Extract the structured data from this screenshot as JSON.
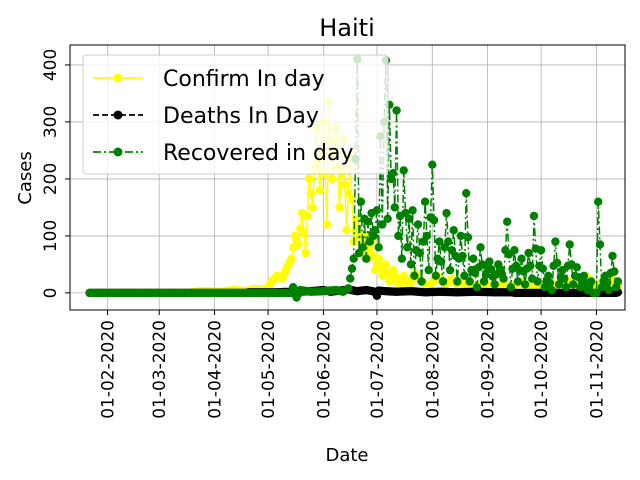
{
  "chart_data": {
    "type": "line",
    "title": "Haiti",
    "xlabel": "Date",
    "ylabel": "Cases",
    "x_range": [
      "2020-01-11",
      "2020-11-17"
    ],
    "ylim": [
      -30,
      435
    ],
    "grid": true,
    "legend_position": "top-left",
    "x_tick_labels": [
      "01-02-2020",
      "01-03-2020",
      "01-04-2020",
      "01-05-2020",
      "01-06-2020",
      "01-07-2020",
      "01-08-2020",
      "01-09-2020",
      "01-10-2020",
      "01-11-2020"
    ],
    "x_tick_dates": [
      "2020-02-01",
      "2020-03-01",
      "2020-04-01",
      "2020-05-01",
      "2020-06-01",
      "2020-07-01",
      "2020-08-01",
      "2020-09-01",
      "2020-10-01",
      "2020-11-01"
    ],
    "y_ticks": [
      0,
      100,
      200,
      300,
      400
    ],
    "series": [
      {
        "name": "Confirm In day",
        "color": "#ffff00",
        "line_style": "solid",
        "points": [
          [
            "2020-01-22",
            0
          ],
          [
            "2020-03-15",
            0
          ],
          [
            "2020-03-20",
            2
          ],
          [
            "2020-03-28",
            3
          ],
          [
            "2020-04-05",
            2
          ],
          [
            "2020-04-12",
            5
          ],
          [
            "2020-04-18",
            3
          ],
          [
            "2020-04-24",
            7
          ],
          [
            "2020-04-30",
            6
          ],
          [
            "2020-05-03",
            20
          ],
          [
            "2020-05-06",
            30
          ],
          [
            "2020-05-09",
            25
          ],
          [
            "2020-05-11",
            40
          ],
          [
            "2020-05-14",
            60
          ],
          [
            "2020-05-16",
            100
          ],
          [
            "2020-05-18",
            85
          ],
          [
            "2020-05-20",
            140
          ],
          [
            "2020-05-22",
            70
          ],
          [
            "2020-05-24",
            200
          ],
          [
            "2020-05-26",
            150
          ],
          [
            "2020-05-28",
            290
          ],
          [
            "2020-05-30",
            180
          ],
          [
            "2020-06-01",
            300
          ],
          [
            "2020-06-03",
            120
          ],
          [
            "2020-06-04",
            335
          ],
          [
            "2020-06-06",
            200
          ],
          [
            "2020-06-08",
            290
          ],
          [
            "2020-06-10",
            150
          ],
          [
            "2020-06-12",
            270
          ],
          [
            "2020-06-14",
            110
          ],
          [
            "2020-06-16",
            240
          ],
          [
            "2020-06-18",
            90
          ],
          [
            "2020-06-20",
            130
          ],
          [
            "2020-06-22",
            70
          ],
          [
            "2020-06-24",
            100
          ],
          [
            "2020-06-26",
            60
          ],
          [
            "2020-06-28",
            90
          ],
          [
            "2020-06-30",
            40
          ],
          [
            "2020-07-02",
            60
          ],
          [
            "2020-07-04",
            30
          ],
          [
            "2020-07-06",
            50
          ],
          [
            "2020-07-08",
            20
          ],
          [
            "2020-07-10",
            40
          ],
          [
            "2020-07-13",
            15
          ],
          [
            "2020-07-16",
            30
          ],
          [
            "2020-07-19",
            10
          ],
          [
            "2020-07-22",
            35
          ],
          [
            "2020-07-26",
            20
          ],
          [
            "2020-07-30",
            10
          ],
          [
            "2020-08-04",
            30
          ],
          [
            "2020-08-08",
            15
          ],
          [
            "2020-08-12",
            25
          ],
          [
            "2020-08-16",
            10
          ],
          [
            "2020-08-20",
            20
          ],
          [
            "2020-08-25",
            12
          ],
          [
            "2020-08-30",
            18
          ],
          [
            "2020-09-04",
            8
          ],
          [
            "2020-09-09",
            15
          ],
          [
            "2020-09-14",
            10
          ],
          [
            "2020-09-20",
            20
          ],
          [
            "2020-09-26",
            8
          ],
          [
            "2020-10-02",
            15
          ],
          [
            "2020-10-08",
            10
          ],
          [
            "2020-10-14",
            25
          ],
          [
            "2020-10-20",
            12
          ],
          [
            "2020-10-26",
            30
          ],
          [
            "2020-11-01",
            10
          ],
          [
            "2020-11-04",
            20
          ],
          [
            "2020-11-07",
            15
          ],
          [
            "2020-11-10",
            25
          ],
          [
            "2020-11-13",
            10
          ]
        ]
      },
      {
        "name": "Deaths In Day",
        "color": "#000000",
        "line_style": "dashed",
        "points": [
          [
            "2020-01-22",
            0
          ],
          [
            "2020-04-05",
            0
          ],
          [
            "2020-04-20",
            1
          ],
          [
            "2020-05-05",
            1
          ],
          [
            "2020-05-15",
            2
          ],
          [
            "2020-05-25",
            3
          ],
          [
            "2020-06-01",
            5
          ],
          [
            "2020-06-05",
            2
          ],
          [
            "2020-06-10",
            4
          ],
          [
            "2020-06-15",
            6
          ],
          [
            "2020-06-20",
            3
          ],
          [
            "2020-06-25",
            5
          ],
          [
            "2020-06-30",
            2
          ],
          [
            "2020-07-01",
            -5
          ],
          [
            "2020-07-02",
            4
          ],
          [
            "2020-07-06",
            3
          ],
          [
            "2020-07-12",
            2
          ],
          [
            "2020-07-20",
            3
          ],
          [
            "2020-07-28",
            1
          ],
          [
            "2020-08-05",
            2
          ],
          [
            "2020-08-15",
            1
          ],
          [
            "2020-08-25",
            2
          ],
          [
            "2020-09-05",
            1
          ],
          [
            "2020-09-15",
            1
          ],
          [
            "2020-09-25",
            0
          ],
          [
            "2020-10-05",
            1
          ],
          [
            "2020-10-15",
            0
          ],
          [
            "2020-10-25",
            1
          ],
          [
            "2020-11-05",
            0
          ],
          [
            "2020-11-13",
            1
          ]
        ]
      },
      {
        "name": "Recovered in day",
        "color": "#008000",
        "line_style": "dashdot",
        "points": [
          [
            "2020-01-22",
            0
          ],
          [
            "2020-05-10",
            0
          ],
          [
            "2020-05-15",
            10
          ],
          [
            "2020-05-17",
            -8
          ],
          [
            "2020-05-19",
            5
          ],
          [
            "2020-05-25",
            2
          ],
          [
            "2020-06-01",
            3
          ],
          [
            "2020-06-08",
            5
          ],
          [
            "2020-06-12",
            2
          ],
          [
            "2020-06-15",
            8
          ],
          [
            "2020-06-18",
            60
          ],
          [
            "2020-06-20",
            410
          ],
          [
            "2020-06-21",
            70
          ],
          [
            "2020-06-22",
            160
          ],
          [
            "2020-06-23",
            80
          ],
          [
            "2020-06-24",
            130
          ],
          [
            "2020-06-25",
            60
          ],
          [
            "2020-06-26",
            125
          ],
          [
            "2020-06-27",
            90
          ],
          [
            "2020-06-28",
            140
          ],
          [
            "2020-06-29",
            100
          ],
          [
            "2020-06-30",
            110
          ],
          [
            "2020-07-01",
            145
          ],
          [
            "2020-07-02",
            80
          ],
          [
            "2020-07-03",
            275
          ],
          [
            "2020-07-04",
            120
          ],
          [
            "2020-07-05",
            300
          ],
          [
            "2020-07-06",
            408
          ],
          [
            "2020-07-07",
            130
          ],
          [
            "2020-07-08",
            330
          ],
          [
            "2020-07-09",
            200
          ],
          [
            "2020-07-10",
            210
          ],
          [
            "2020-07-11",
            150
          ],
          [
            "2020-07-12",
            320
          ],
          [
            "2020-07-13",
            100
          ],
          [
            "2020-07-14",
            135
          ],
          [
            "2020-07-15",
            60
          ],
          [
            "2020-07-16",
            215
          ],
          [
            "2020-07-17",
            140
          ],
          [
            "2020-07-18",
            80
          ],
          [
            "2020-07-19",
            130
          ],
          [
            "2020-07-20",
            50
          ],
          [
            "2020-07-21",
            145
          ],
          [
            "2020-07-22",
            30
          ],
          [
            "2020-07-24",
            120
          ],
          [
            "2020-07-26",
            20
          ],
          [
            "2020-07-28",
            160
          ],
          [
            "2020-07-30",
            40
          ],
          [
            "2020-08-01",
            225
          ],
          [
            "2020-08-03",
            30
          ],
          [
            "2020-08-05",
            90
          ],
          [
            "2020-08-07",
            20
          ],
          [
            "2020-08-09",
            140
          ],
          [
            "2020-08-11",
            40
          ],
          [
            "2020-08-13",
            110
          ],
          [
            "2020-08-15",
            20
          ],
          [
            "2020-08-17",
            100
          ],
          [
            "2020-08-19",
            30
          ],
          [
            "2020-08-20",
            175
          ],
          [
            "2020-08-22",
            20
          ],
          [
            "2020-08-24",
            60
          ],
          [
            "2020-08-26",
            10
          ],
          [
            "2020-08-28",
            80
          ],
          [
            "2020-08-30",
            20
          ],
          [
            "2020-09-02",
            55
          ],
          [
            "2020-09-05",
            15
          ],
          [
            "2020-09-07",
            50
          ],
          [
            "2020-09-10",
            25
          ],
          [
            "2020-09-12",
            125
          ],
          [
            "2020-09-14",
            10
          ],
          [
            "2020-09-16",
            75
          ],
          [
            "2020-09-18",
            20
          ],
          [
            "2020-09-20",
            60
          ],
          [
            "2020-09-22",
            15
          ],
          [
            "2020-09-24",
            70
          ],
          [
            "2020-09-26",
            25
          ],
          [
            "2020-09-27",
            135
          ],
          [
            "2020-09-29",
            20
          ],
          [
            "2020-10-01",
            75
          ],
          [
            "2020-10-03",
            10
          ],
          [
            "2020-10-05",
            30
          ],
          [
            "2020-10-07",
            5
          ],
          [
            "2020-10-09",
            90
          ],
          [
            "2020-10-11",
            15
          ],
          [
            "2020-10-13",
            40
          ],
          [
            "2020-10-15",
            10
          ],
          [
            "2020-10-17",
            85
          ],
          [
            "2020-10-19",
            15
          ],
          [
            "2020-10-21",
            45
          ],
          [
            "2020-10-23",
            10
          ],
          [
            "2020-10-25",
            30
          ],
          [
            "2020-10-27",
            5
          ],
          [
            "2020-10-29",
            20
          ],
          [
            "2020-10-31",
            0
          ],
          [
            "2020-11-02",
            160
          ],
          [
            "2020-11-04",
            10
          ],
          [
            "2020-11-06",
            30
          ],
          [
            "2020-11-08",
            5
          ],
          [
            "2020-11-10",
            65
          ],
          [
            "2020-11-12",
            10
          ],
          [
            "2020-11-13",
            20
          ]
        ]
      }
    ]
  }
}
